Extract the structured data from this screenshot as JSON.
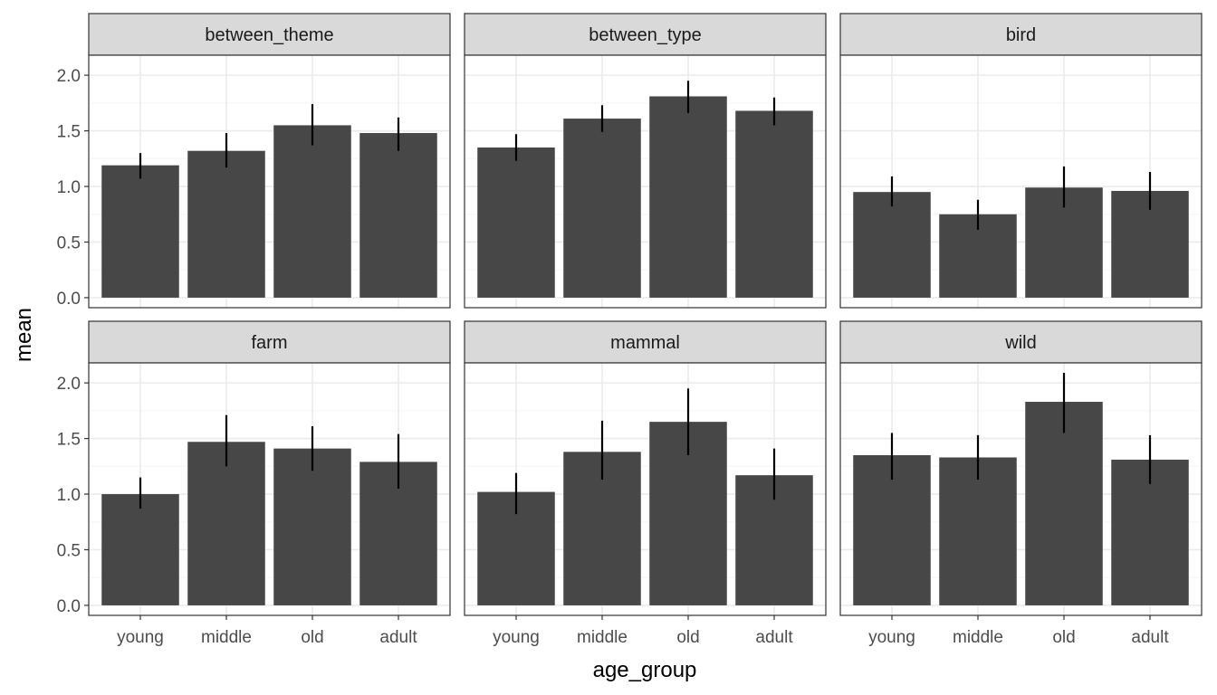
{
  "chart_data": {
    "type": "bar",
    "xlabel": "age_group",
    "ylabel": "mean",
    "categories": [
      "young",
      "middle",
      "old",
      "adult"
    ],
    "ylim": [
      -0.09,
      2.18
    ],
    "yticks": [
      0.0,
      0.5,
      1.0,
      1.5,
      2.0
    ],
    "ytick_labels": [
      "0.0",
      "0.5",
      "1.0",
      "1.5",
      "2.0"
    ],
    "grid": true,
    "facet_layout": {
      "rows": 2,
      "cols": 3
    },
    "colors": {
      "bar": "#474747",
      "errorbar": "#000000",
      "strip_fill": "#d9d9d9",
      "grid_major": "#ebebeb",
      "grid_minor": "#f5f5f5",
      "panel_border": "#333333"
    },
    "panels": [
      {
        "name": "between_theme",
        "values": [
          1.19,
          1.32,
          1.55,
          1.48
        ],
        "error_low": [
          1.07,
          1.17,
          1.37,
          1.32
        ],
        "error_high": [
          1.3,
          1.48,
          1.74,
          1.62
        ]
      },
      {
        "name": "between_type",
        "values": [
          1.35,
          1.61,
          1.81,
          1.68
        ],
        "error_low": [
          1.23,
          1.49,
          1.66,
          1.55
        ],
        "error_high": [
          1.47,
          1.73,
          1.95,
          1.8
        ]
      },
      {
        "name": "bird",
        "values": [
          0.95,
          0.75,
          0.99,
          0.96
        ],
        "error_low": [
          0.82,
          0.61,
          0.81,
          0.79
        ],
        "error_high": [
          1.09,
          0.88,
          1.18,
          1.13
        ]
      },
      {
        "name": "farm",
        "values": [
          1.0,
          1.47,
          1.41,
          1.29
        ],
        "error_low": [
          0.87,
          1.25,
          1.21,
          1.05
        ],
        "error_high": [
          1.15,
          1.71,
          1.61,
          1.54
        ]
      },
      {
        "name": "mammal",
        "values": [
          1.02,
          1.38,
          1.65,
          1.17
        ],
        "error_low": [
          0.82,
          1.13,
          1.35,
          0.95
        ],
        "error_high": [
          1.19,
          1.66,
          1.95,
          1.41
        ]
      },
      {
        "name": "wild",
        "values": [
          1.35,
          1.33,
          1.83,
          1.31
        ],
        "error_low": [
          1.13,
          1.13,
          1.55,
          1.09
        ],
        "error_high": [
          1.55,
          1.53,
          2.09,
          1.53
        ]
      }
    ]
  }
}
